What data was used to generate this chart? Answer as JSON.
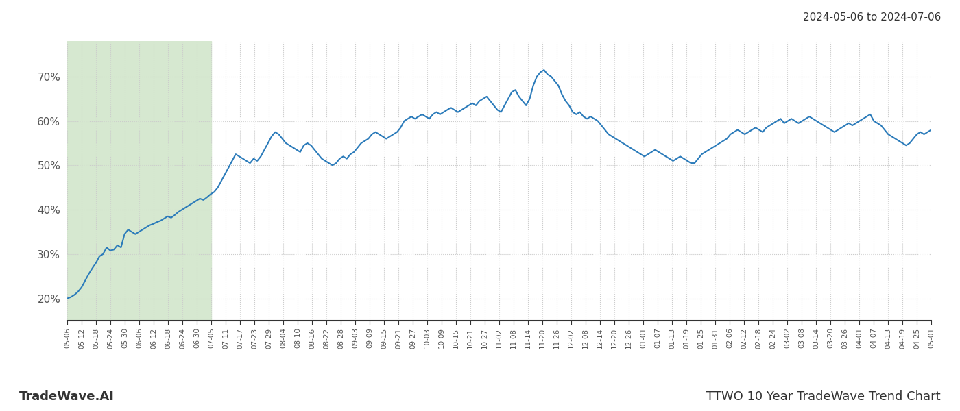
{
  "title_right": "2024-05-06 to 2024-07-06",
  "footer_left": "TradeWave.AI",
  "footer_right": "TTWO 10 Year TradeWave Trend Chart",
  "line_color": "#2b7bba",
  "line_width": 1.5,
  "bg_color": "#ffffff",
  "grid_color": "#cccccc",
  "shading_color": "#d6e8d0",
  "ylim": [
    15,
    78
  ],
  "yticks": [
    20,
    30,
    40,
    50,
    60,
    70
  ],
  "ytick_labels": [
    "20%",
    "30%",
    "40%",
    "50%",
    "60%",
    "70%"
  ],
  "x_labels": [
    "05-06",
    "05-12",
    "05-18",
    "05-24",
    "05-30",
    "06-06",
    "06-12",
    "06-18",
    "06-24",
    "06-30",
    "07-05",
    "07-11",
    "07-17",
    "07-23",
    "07-29",
    "08-04",
    "08-10",
    "08-16",
    "08-22",
    "08-28",
    "09-03",
    "09-09",
    "09-15",
    "09-21",
    "09-27",
    "10-03",
    "10-09",
    "10-15",
    "10-21",
    "10-27",
    "11-02",
    "11-08",
    "11-14",
    "11-20",
    "11-26",
    "12-02",
    "12-08",
    "12-14",
    "12-20",
    "12-26",
    "01-01",
    "01-07",
    "01-13",
    "01-19",
    "01-25",
    "01-31",
    "02-06",
    "02-12",
    "02-18",
    "02-24",
    "03-02",
    "03-08",
    "03-14",
    "03-20",
    "03-26",
    "04-01",
    "04-07",
    "04-13",
    "04-19",
    "04-25",
    "05-01"
  ],
  "shading_start_label": "05-06",
  "shading_end_label": "07-05",
  "values": [
    20.0,
    20.3,
    20.8,
    21.5,
    22.5,
    24.0,
    25.5,
    26.8,
    28.0,
    29.5,
    30.0,
    31.5,
    30.8,
    31.0,
    32.0,
    31.5,
    34.5,
    35.5,
    35.0,
    34.5,
    35.0,
    35.5,
    36.0,
    36.5,
    36.8,
    37.2,
    37.5,
    38.0,
    38.5,
    38.2,
    38.8,
    39.5,
    40.0,
    40.5,
    41.0,
    41.5,
    42.0,
    42.5,
    42.2,
    42.8,
    43.5,
    44.0,
    45.0,
    46.5,
    48.0,
    49.5,
    51.0,
    52.5,
    52.0,
    51.5,
    51.0,
    50.5,
    51.5,
    51.0,
    52.0,
    53.5,
    55.0,
    56.5,
    57.5,
    57.0,
    56.0,
    55.0,
    54.5,
    54.0,
    53.5,
    53.0,
    54.5,
    55.0,
    54.5,
    53.5,
    52.5,
    51.5,
    51.0,
    50.5,
    50.0,
    50.5,
    51.5,
    52.0,
    51.5,
    52.5,
    53.0,
    54.0,
    55.0,
    55.5,
    56.0,
    57.0,
    57.5,
    57.0,
    56.5,
    56.0,
    56.5,
    57.0,
    57.5,
    58.5,
    60.0,
    60.5,
    61.0,
    60.5,
    61.0,
    61.5,
    61.0,
    60.5,
    61.5,
    62.0,
    61.5,
    62.0,
    62.5,
    63.0,
    62.5,
    62.0,
    62.5,
    63.0,
    63.5,
    64.0,
    63.5,
    64.5,
    65.0,
    65.5,
    64.5,
    63.5,
    62.5,
    62.0,
    63.5,
    65.0,
    66.5,
    67.0,
    65.5,
    64.5,
    63.5,
    65.0,
    68.0,
    70.0,
    71.0,
    71.5,
    70.5,
    70.0,
    69.0,
    68.0,
    66.0,
    64.5,
    63.5,
    62.0,
    61.5,
    62.0,
    61.0,
    60.5,
    61.0,
    60.5,
    60.0,
    59.0,
    58.0,
    57.0,
    56.5,
    56.0,
    55.5,
    55.0,
    54.5,
    54.0,
    53.5,
    53.0,
    52.5,
    52.0,
    52.5,
    53.0,
    53.5,
    53.0,
    52.5,
    52.0,
    51.5,
    51.0,
    51.5,
    52.0,
    51.5,
    51.0,
    50.5,
    50.5,
    51.5,
    52.5,
    53.0,
    53.5,
    54.0,
    54.5,
    55.0,
    55.5,
    56.0,
    57.0,
    57.5,
    58.0,
    57.5,
    57.0,
    57.5,
    58.0,
    58.5,
    58.0,
    57.5,
    58.5,
    59.0,
    59.5,
    60.0,
    60.5,
    59.5,
    60.0,
    60.5,
    60.0,
    59.5,
    60.0,
    60.5,
    61.0,
    60.5,
    60.0,
    59.5,
    59.0,
    58.5,
    58.0,
    57.5,
    58.0,
    58.5,
    59.0,
    59.5,
    59.0,
    59.5,
    60.0,
    60.5,
    61.0,
    61.5,
    60.0,
    59.5,
    59.0,
    58.0,
    57.0,
    56.5,
    56.0,
    55.5,
    55.0,
    54.5,
    55.0,
    56.0,
    57.0,
    57.5,
    57.0,
    57.5,
    58.0
  ]
}
